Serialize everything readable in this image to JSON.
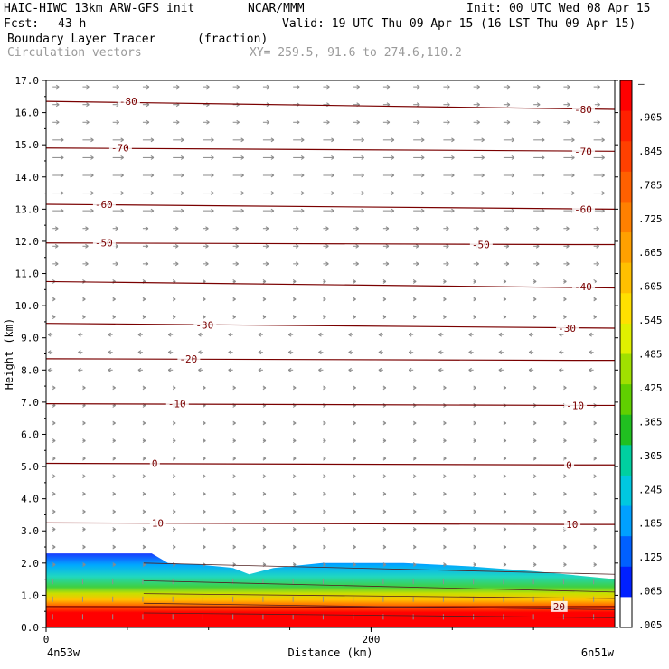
{
  "header": {
    "model": "HAIC-HIWC 13km ARW-GFS init",
    "center": "NCAR/MMM",
    "init": "Init: 00 UTC Wed 08 Apr 15",
    "fcst_label": "Fcst:",
    "fcst_value": "43 h",
    "valid": "Valid: 19 UTC Thu 09 Apr 15 (16 LST Thu 09 Apr 15)",
    "field_name": "Boundary Layer Tracer",
    "field_units": "(fraction)",
    "vectors_label": "Circulation vectors",
    "xy": "XY= 259.5, 91.6 to 274.6,110.2"
  },
  "chart_data": {
    "type": "heatmap",
    "xlabel": "Distance (km)",
    "ylabel": "Height (km)",
    "xlim": [
      0,
      350
    ],
    "ylim": [
      0,
      17
    ],
    "x_ticks": [
      "0",
      "200"
    ],
    "x_end_labels": [
      "4n53w",
      "6n51w"
    ],
    "y_ticks": [
      "0.0",
      "1.0",
      "2.0",
      "3.0",
      "4.0",
      "5.0",
      "6.0",
      "7.0",
      "8.0",
      "9.0",
      "10.0",
      "11.0",
      "12.0",
      "13.0",
      "14.0",
      "15.0",
      "16.0",
      "17.0"
    ],
    "colorbar": {
      "labels": [
        "–",
        ".905",
        ".845",
        ".785",
        ".725",
        ".665",
        ".605",
        ".545",
        ".485",
        ".425",
        ".365",
        ".305",
        ".245",
        ".185",
        ".125",
        ".065",
        ".005"
      ],
      "colors": [
        "#ff0000",
        "#ff2000",
        "#ff4000",
        "#ff6000",
        "#ff8000",
        "#ffa000",
        "#ffc000",
        "#ffe000",
        "#e0f000",
        "#a0e000",
        "#60d000",
        "#20c020",
        "#00d0a0",
        "#00c8e0",
        "#00a0ff",
        "#0060ff",
        "#0020ff",
        "#ffffff"
      ]
    },
    "tracer_top": [
      [
        0,
        2.3
      ],
      [
        30,
        2.3
      ],
      [
        65,
        2.3
      ],
      [
        75,
        2.0
      ],
      [
        95,
        1.95
      ],
      [
        115,
        1.85
      ],
      [
        125,
        1.65
      ],
      [
        140,
        1.85
      ],
      [
        170,
        2.0
      ],
      [
        220,
        2.0
      ],
      [
        260,
        1.9
      ],
      [
        300,
        1.75
      ],
      [
        330,
        1.6
      ],
      [
        350,
        1.5
      ]
    ],
    "temperature_contours": [
      {
        "label": "-80",
        "y_left": 16.35,
        "y_right": 16.1
      },
      {
        "label": "-70",
        "y_left": 14.9,
        "y_right": 14.8
      },
      {
        "label": "-60",
        "y_left": 13.15,
        "y_right": 13.0
      },
      {
        "label": "-50",
        "y_left": 11.95,
        "y_right": 11.9
      },
      {
        "label": "-40",
        "y_left": 10.75,
        "y_right": 10.55
      },
      {
        "label": "-30",
        "y_left": 9.45,
        "y_right": 9.3
      },
      {
        "label": "-20",
        "y_left": 8.35,
        "y_right": 8.3
      },
      {
        "label": "-10",
        "y_left": 6.95,
        "y_right": 6.9
      },
      {
        "label": "0",
        "y_left": 5.1,
        "y_right": 5.05
      },
      {
        "label": "10",
        "y_left": 3.25,
        "y_right": 3.2
      },
      {
        "label": "20",
        "y_left": 0.65,
        "y_right": 0.65
      }
    ],
    "contour_label_positions": [
      {
        "label": "-80",
        "x": 45,
        "y": 16.35
      },
      {
        "label": "-80",
        "x": 325,
        "y": 16.1
      },
      {
        "label": "-70",
        "x": 40,
        "y": 14.9
      },
      {
        "label": "-70",
        "x": 325,
        "y": 14.8
      },
      {
        "label": "-60",
        "x": 30,
        "y": 13.15
      },
      {
        "label": "-60",
        "x": 325,
        "y": 13.0
      },
      {
        "label": "-50",
        "x": 30,
        "y": 11.95
      },
      {
        "label": "-50",
        "x": 262,
        "y": 11.9
      },
      {
        "label": "-40",
        "x": 325,
        "y": 10.6
      },
      {
        "label": "-30",
        "x": 92,
        "y": 9.4
      },
      {
        "label": "-30",
        "x": 315,
        "y": 9.3
      },
      {
        "label": "-20",
        "x": 82,
        "y": 8.35
      },
      {
        "label": "-10",
        "x": 75,
        "y": 6.95
      },
      {
        "label": "-10",
        "x": 320,
        "y": 6.9
      },
      {
        "label": "0",
        "x": 65,
        "y": 5.1
      },
      {
        "label": "0",
        "x": 320,
        "y": 5.05
      },
      {
        "label": "10",
        "x": 65,
        "y": 3.25
      },
      {
        "label": "10",
        "x": 320,
        "y": 3.2
      },
      {
        "label": "20",
        "x": 312,
        "y": 0.65
      }
    ]
  }
}
